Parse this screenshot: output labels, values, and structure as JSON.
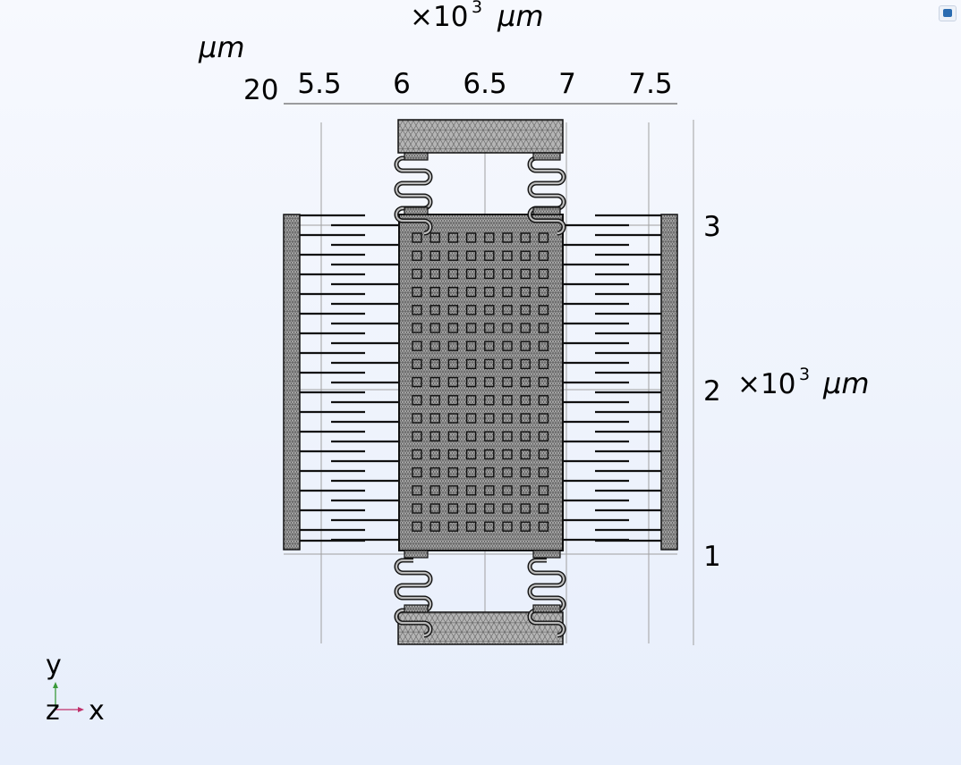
{
  "top_axis": {
    "scale_prefix": "×10",
    "scale_exp": "3",
    "unit": "μm",
    "ticks": [
      "5.5",
      "6",
      "6.5",
      "7",
      "7.5"
    ]
  },
  "left_axis": {
    "unit": "μm",
    "value": "20"
  },
  "right_axis": {
    "scale_prefix": "×10",
    "scale_exp": "3",
    "unit": "μm",
    "ticks": [
      "3",
      "2",
      "1"
    ]
  },
  "triad": {
    "y": "y",
    "z": "z",
    "x": "x"
  },
  "colors": {
    "mesh_fill": "#b4b4b4",
    "mesh_line": "#555555",
    "structure": "#111111",
    "grid": "#a0a0a0",
    "triad_y": "#3a9a3a",
    "triad_x": "#c0306a"
  }
}
